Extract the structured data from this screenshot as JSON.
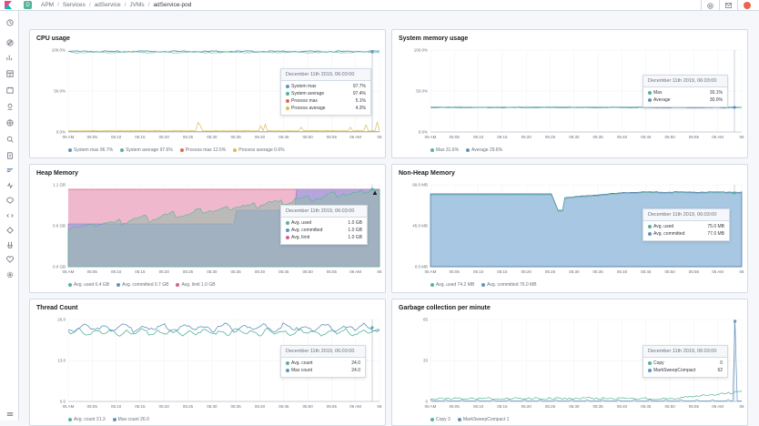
{
  "topbar": {
    "space_letter": "D",
    "breadcrumbs": [
      "APM",
      "Services",
      "adService",
      "JVMs",
      "adService-pod"
    ],
    "separator": "/"
  },
  "colors": {
    "blue": "#6092c0",
    "teal": "#54b399",
    "orange": "#d6bf57",
    "red": "#d36086",
    "darkblue": "#3f6f9e",
    "purple": "#9170b8"
  },
  "x_ticks": [
    "05 AM",
    "05:05",
    "05:10",
    "05:15",
    "05:20",
    "05:25",
    "05:30",
    "05:35",
    "05:40",
    "05:45",
    "05:50",
    "05:55",
    "06 AM",
    "06"
  ],
  "panels": {
    "cpu": {
      "title": "CPU usage",
      "y_ticks": [
        "100.0%",
        "50.0%",
        "0.0%"
      ],
      "tooltip_title": "December 11th 2019, 06:03:00",
      "tooltip_rows": [
        {
          "label": "System max",
          "value": "97.7%"
        },
        {
          "label": "System average",
          "value": "97.4%"
        },
        {
          "label": "Process max",
          "value": "5.1%"
        },
        {
          "label": "Process average",
          "value": "4.3%"
        }
      ],
      "legend": [
        "System max 96.7%",
        "System average 97.6%",
        "Process max 12.5%",
        "Process average 0.6%"
      ]
    },
    "memory": {
      "title": "System memory usage",
      "y_ticks": [
        "100.0%",
        "50.0%",
        "0.0%"
      ],
      "tooltip_title": "December 11th 2019, 06:03:00",
      "tooltip_rows": [
        {
          "label": "Max",
          "value": "30.1%"
        },
        {
          "label": "Average",
          "value": "30.0%"
        }
      ],
      "legend": [
        "Max 31.6%",
        "Average 29.6%"
      ]
    },
    "heap": {
      "title": "Heap Memory",
      "y_ticks": [
        "1.1 GB",
        "0.6 GB",
        "0.0 GB"
      ],
      "tooltip_title": "December 11th 2019, 06:03:00",
      "tooltip_rows": [
        {
          "label": "Avg. used",
          "value": "1.0 GB"
        },
        {
          "label": "Avg. committed",
          "value": "1.0 GB"
        },
        {
          "label": "Avg. limit",
          "value": "1.0 GB"
        }
      ],
      "legend": [
        "Avg. used 0.4 GB",
        "Avg. committed 0.7 GB",
        "Avg. limit 1.0 GB"
      ]
    },
    "nonheap": {
      "title": "Non-Heap Memory",
      "y_ticks": [
        "90.0 MB",
        "45.0 MB",
        "0.0 MB"
      ],
      "tooltip_title": "December 11th 2019, 06:03:00",
      "tooltip_rows": [
        {
          "label": "Avg. used",
          "value": "75.0 MB"
        },
        {
          "label": "Avg. committed",
          "value": "77.0 MB"
        }
      ],
      "legend": [
        "Avg. used 74.2 MB",
        "Avg. committed 76.0 MB"
      ]
    },
    "threads": {
      "title": "Thread Count",
      "y_ticks": [
        "26.0",
        "13.0",
        "0.0"
      ],
      "tooltip_title": "December 11th 2019, 06:03:00",
      "tooltip_rows": [
        {
          "label": "Avg. count",
          "value": "24.0"
        },
        {
          "label": "Max count",
          "value": "24.0"
        }
      ],
      "legend": [
        "Avg. count 21.3",
        "Max count 26.0"
      ]
    },
    "gc": {
      "title": "Garbage collection per minute",
      "y_ticks": [
        "65",
        "33",
        "0"
      ],
      "tooltip_title": "December 11th 2019, 06:03:00",
      "tooltip_rows": [
        {
          "label": "Copy",
          "value": "0"
        },
        {
          "label": "MarkSweepCompact",
          "value": "62"
        }
      ],
      "legend": [
        "Copy 3",
        "MarkSweepCompact 1"
      ]
    }
  }
}
